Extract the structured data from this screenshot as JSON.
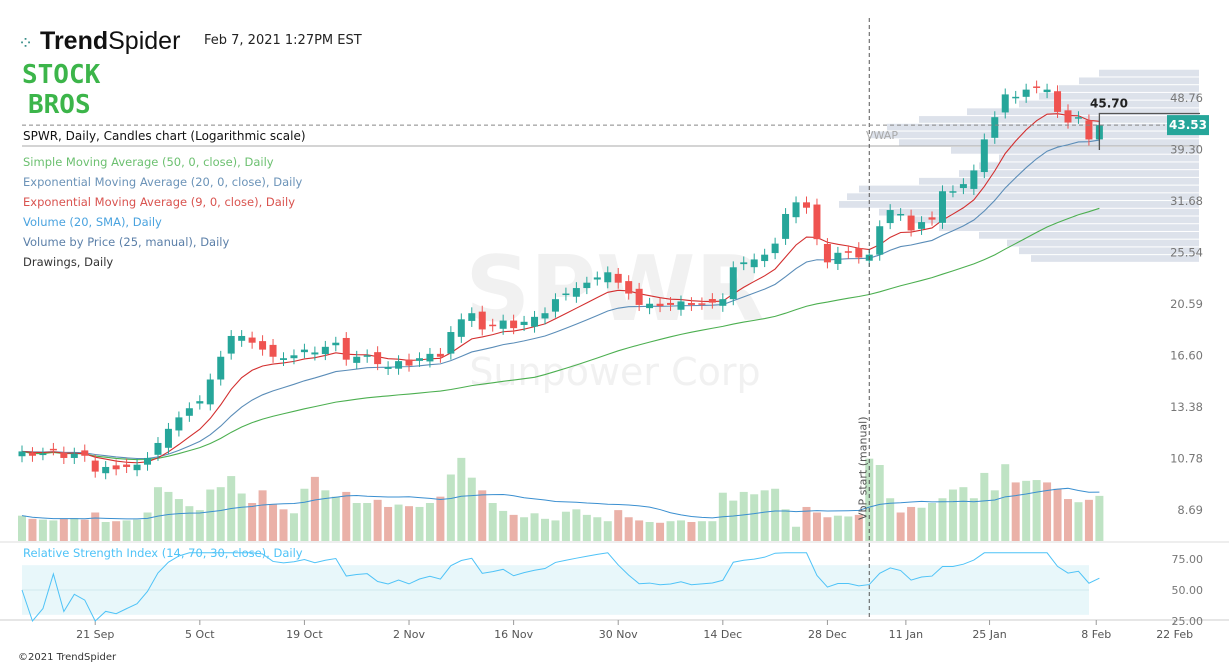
{
  "header": {
    "brand": "TrendSpider",
    "brand_bold": "Trend",
    "brand_light": "Spider",
    "timestamp": "Feb 7, 2021 1:27PM EST",
    "overlay_logo_line1": "STOCK",
    "overlay_logo_line2": "BROS"
  },
  "legend": {
    "title": "SPWR, Daily, Candles chart (Logarithmic scale)",
    "items": [
      {
        "label": "Simple Moving Average (50, 0, close), Daily",
        "color": "#6cc070"
      },
      {
        "label": "Exponential Moving Average (20, 0, close), Daily",
        "color": "#6b93b8"
      },
      {
        "label": "Exponential Moving Average (9, 0, close), Daily",
        "color": "#d9534f"
      },
      {
        "label": "Volume (20, SMA), Daily",
        "color": "#4aa3df"
      },
      {
        "label": "Volume by Price (25, manual), Daily",
        "color": "#5b7fa8"
      },
      {
        "label": "Drawings, Daily",
        "color": "#333333"
      }
    ]
  },
  "watermark": {
    "symbol": "SPWR",
    "name": "Sunpower Corp"
  },
  "annotations": {
    "vwap": "VWAP",
    "vbp_start": "VbP start (manual)",
    "level_label": "45.70",
    "current_price": "43.53"
  },
  "footer": "©2021 TrendSpider",
  "colors": {
    "up": "#26a69a",
    "down": "#ef5350",
    "vol_up": "#bfe3c4",
    "vol_down": "#eab1a8",
    "vbp": "#dde2eb",
    "rsi_band": "#e8f7fa",
    "rsi_line": "#4fc3f7"
  },
  "chart_data": {
    "type": "candlestick",
    "symbol": "SPWR",
    "scale": "log",
    "y_ticks": [
      48.76,
      39.3,
      31.68,
      25.54,
      20.59,
      16.6,
      13.38,
      10.78,
      8.69
    ],
    "x_ticks": [
      {
        "label": "21 Sep",
        "bar": 7
      },
      {
        "label": "5 Oct",
        "bar": 17
      },
      {
        "label": "19 Oct",
        "bar": 27
      },
      {
        "label": "2 Nov",
        "bar": 37
      },
      {
        "label": "16 Nov",
        "bar": 47
      },
      {
        "label": "30 Nov",
        "bar": 57
      },
      {
        "label": "14 Dec",
        "bar": 67
      },
      {
        "label": "28 Dec",
        "bar": 77
      },
      {
        "label": "11 Jan",
        "bar": 84.5
      },
      {
        "label": "25 Jan",
        "bar": 92.5
      },
      {
        "label": "8 Feb",
        "bar": 102.7
      },
      {
        "label": "22 Feb",
        "bar": 110.2
      }
    ],
    "closes": [
      11.1,
      10.9,
      11.0,
      11.2,
      10.8,
      11.0,
      10.9,
      10.2,
      10.4,
      10.3,
      10.4,
      10.5,
      10.8,
      11.5,
      12.2,
      12.8,
      13.3,
      13.7,
      15.0,
      16.5,
      18.0,
      18.0,
      17.5,
      17.0,
      16.5,
      16.4,
      16.6,
      17.0,
      16.8,
      17.2,
      17.5,
      16.3,
      16.5,
      16.6,
      16.0,
      15.8,
      16.2,
      15.9,
      16.4,
      16.7,
      16.5,
      18.3,
      19.3,
      19.8,
      18.5,
      18.8,
      19.2,
      18.6,
      19.1,
      19.5,
      19.8,
      21.0,
      21.5,
      22.0,
      22.5,
      23.0,
      23.5,
      22.5,
      21.5,
      20.5,
      20.6,
      20.4,
      20.5,
      20.8,
      20.5,
      20.6,
      20.7,
      21.0,
      24.0,
      24.5,
      24.8,
      25.3,
      26.5,
      30.0,
      31.5,
      30.8,
      27.0,
      24.5,
      25.5,
      25.5,
      25.0,
      25.3,
      28.5,
      30.5,
      30.0,
      28.0,
      29.0,
      29.3,
      33.0,
      33.0,
      34.0,
      36.0,
      41.0,
      45.0,
      49.5,
      49.0,
      50.5,
      51.0,
      50.5,
      46.0,
      44.0,
      45.0,
      41.0,
      43.53
    ],
    "volume_millions": [
      3.2,
      2.8,
      2.7,
      2.6,
      2.8,
      2.9,
      2.7,
      3.6,
      2.4,
      2.5,
      2.6,
      2.7,
      3.6,
      6.8,
      6.2,
      5.3,
      4.4,
      3.9,
      6.5,
      6.8,
      8.2,
      6.0,
      4.8,
      6.4,
      4.6,
      4.0,
      3.5,
      6.6,
      8.1,
      6.4,
      5.6,
      6.2,
      4.8,
      4.8,
      5.2,
      4.3,
      4.6,
      4.4,
      4.3,
      4.8,
      5.6,
      8.4,
      10.5,
      8.0,
      6.4,
      4.8,
      3.8,
      3.3,
      3.0,
      3.5,
      2.8,
      2.6,
      3.7,
      4.0,
      3.3,
      3.0,
      2.5,
      3.9,
      3.0,
      2.6,
      2.4,
      2.3,
      2.5,
      2.6,
      2.4,
      2.5,
      2.5,
      6.1,
      5.1,
      6.2,
      5.9,
      6.4,
      6.6,
      4.0,
      1.8,
      4.3,
      3.6,
      3.0,
      3.2,
      3.1,
      3.3,
      10.4,
      9.6,
      5.4,
      3.6,
      4.3,
      4.2,
      4.8,
      5.4,
      6.5,
      6.8,
      5.4,
      8.6,
      6.4,
      9.7,
      7.4,
      7.6,
      7.7,
      7.4,
      6.6,
      5.3,
      4.9,
      5.2,
      5.7
    ],
    "volume_by_price": [
      0.42,
      0.45,
      0.48,
      0.55,
      0.65,
      0.72,
      0.8,
      0.9,
      0.88,
      0.85,
      0.7,
      0.6,
      0.55,
      0.5,
      0.62,
      0.75,
      0.82,
      0.78,
      0.7,
      0.58,
      0.45,
      0.4,
      0.35,
      0.3,
      0.25
    ],
    "vbp_range": [
      24.5,
      55.0
    ],
    "rsi_ticks": [
      75.0,
      50.0,
      25.0
    ],
    "level": 45.7,
    "last_price": 43.53
  }
}
